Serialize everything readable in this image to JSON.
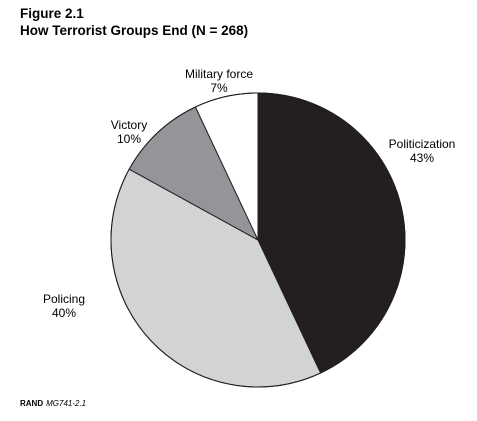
{
  "figure": {
    "number": "Figure 2.1",
    "title": "How Terrorist Groups End (N = 268)"
  },
  "footer": {
    "publisher": "RAND",
    "code": "MG741-2.1"
  },
  "chart_data": {
    "type": "pie",
    "title": "How Terrorist Groups End (N = 268)",
    "start": "12 o'clock, clockwise",
    "slices": [
      {
        "label": "Politicization",
        "value": 43,
        "value_label": "43%",
        "color": "#231f20"
      },
      {
        "label": "Policing",
        "value": 40,
        "value_label": "40%",
        "color": "#d1d3d4"
      },
      {
        "label": "Victory",
        "value": 10,
        "value_label": "10%",
        "color": "#939598"
      },
      {
        "label": "Military force",
        "value": 7,
        "value_label": "7%",
        "color": "#ffffff"
      }
    ],
    "edge_color": "#231f20"
  }
}
